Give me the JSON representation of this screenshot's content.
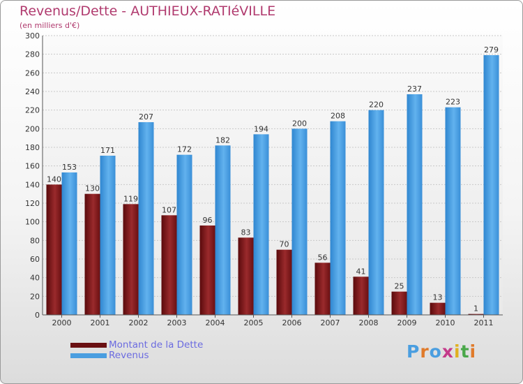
{
  "chart_data": {
    "type": "bar",
    "title": "Revenus/Dette - AUTHIEUX-RATIéVILLE",
    "subtitle": "(en milliers d'€)",
    "categories": [
      "2000",
      "2001",
      "2002",
      "2003",
      "2004",
      "2005",
      "2006",
      "2007",
      "2008",
      "2009",
      "2010",
      "2011"
    ],
    "series": [
      {
        "name": "Montant de la Dette",
        "color": "#7a1416",
        "values": [
          140,
          130,
          119,
          107,
          96,
          83,
          70,
          56,
          41,
          25,
          13,
          1
        ]
      },
      {
        "name": "Revenus",
        "color": "#4a9ee0",
        "values": [
          153,
          171,
          207,
          172,
          182,
          194,
          200,
          208,
          220,
          237,
          223,
          279
        ]
      }
    ],
    "ylim": [
      0,
      300
    ],
    "ystep": 20,
    "grid": true,
    "legend_position": "bottom-left"
  },
  "logo": {
    "text": "Proxiti"
  }
}
